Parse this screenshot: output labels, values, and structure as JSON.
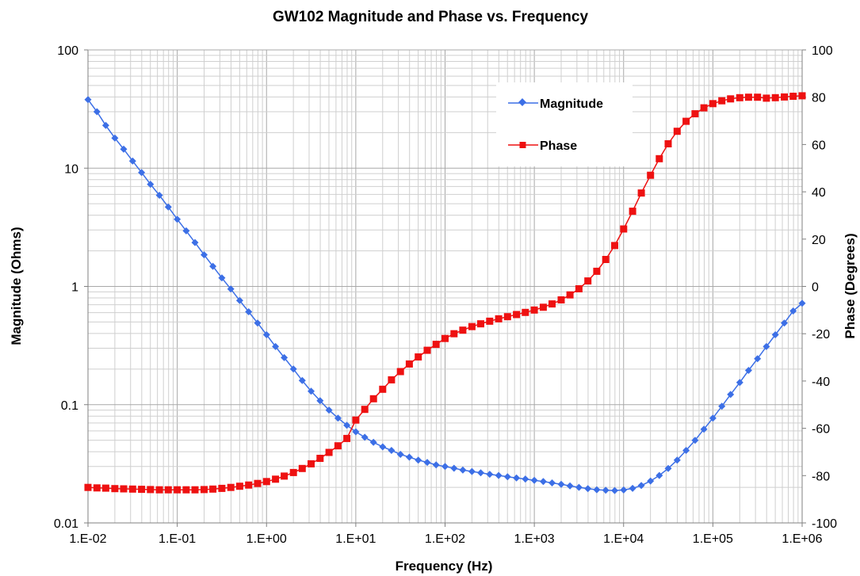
{
  "chart_data": {
    "type": "line",
    "title": "GW102 Magnitude and Phase vs. Frequency",
    "xlabel": "Frequency (Hz)",
    "ylabel_left": "Magnitude (Ohms)",
    "ylabel_right": "Phase (Degrees)",
    "x_scale": "log",
    "y_left_scale": "log",
    "y_right_scale": "linear",
    "xlim": [
      0.01,
      1000000
    ],
    "ylim_left": [
      0.01,
      100
    ],
    "ylim_right": [
      -100,
      100
    ],
    "x_tick_labels": [
      "1.E-02",
      "1.E-01",
      "1.E+00",
      "1.E+01",
      "1.E+02",
      "1.E+03",
      "1.E+04",
      "1.E+05",
      "1.E+06"
    ],
    "y_left_tick_labels": [
      "0.01",
      "0.1",
      "1",
      "10",
      "100"
    ],
    "y_right_tick_labels": [
      "-100",
      "-80",
      "-60",
      "-40",
      "-20",
      "0",
      "20",
      "40",
      "60",
      "80",
      "100"
    ],
    "grid": true,
    "legend_position": "top-right",
    "series": [
      {
        "name": "Magnitude",
        "axis": "left",
        "color": "#3c6fe6",
        "marker": "diamond",
        "points": [
          [
            0.01,
            38.0
          ],
          [
            0.0126,
            30.0
          ],
          [
            0.0158,
            23.0
          ],
          [
            0.02,
            18.0
          ],
          [
            0.0251,
            14.5
          ],
          [
            0.0316,
            11.5
          ],
          [
            0.0398,
            9.2
          ],
          [
            0.0501,
            7.3
          ],
          [
            0.0631,
            5.9
          ],
          [
            0.0794,
            4.7
          ],
          [
            0.1,
            3.7
          ],
          [
            0.126,
            2.95
          ],
          [
            0.158,
            2.35
          ],
          [
            0.2,
            1.85
          ],
          [
            0.251,
            1.48
          ],
          [
            0.316,
            1.18
          ],
          [
            0.398,
            0.95
          ],
          [
            0.501,
            0.76
          ],
          [
            0.631,
            0.61
          ],
          [
            0.794,
            0.49
          ],
          [
            1,
            0.39
          ],
          [
            1.26,
            0.31
          ],
          [
            1.58,
            0.25
          ],
          [
            2,
            0.2
          ],
          [
            2.51,
            0.16
          ],
          [
            3.16,
            0.13
          ],
          [
            3.98,
            0.108
          ],
          [
            5.01,
            0.09
          ],
          [
            6.31,
            0.077
          ],
          [
            7.94,
            0.067
          ],
          [
            10,
            0.059
          ],
          [
            12.6,
            0.053
          ],
          [
            15.8,
            0.048
          ],
          [
            20,
            0.044
          ],
          [
            25.1,
            0.041
          ],
          [
            31.6,
            0.038
          ],
          [
            39.8,
            0.036
          ],
          [
            50.1,
            0.034
          ],
          [
            63.1,
            0.0325
          ],
          [
            79.4,
            0.031
          ],
          [
            100,
            0.03
          ],
          [
            126,
            0.029
          ],
          [
            158,
            0.028
          ],
          [
            200,
            0.0272
          ],
          [
            251,
            0.0265
          ],
          [
            316,
            0.0258
          ],
          [
            398,
            0.0252
          ],
          [
            501,
            0.0246
          ],
          [
            631,
            0.024
          ],
          [
            794,
            0.0235
          ],
          [
            1000,
            0.0229
          ],
          [
            1260,
            0.0224
          ],
          [
            1580,
            0.0218
          ],
          [
            2000,
            0.0212
          ],
          [
            2510,
            0.0206
          ],
          [
            3160,
            0.02
          ],
          [
            3980,
            0.0195
          ],
          [
            5010,
            0.0191
          ],
          [
            6310,
            0.0189
          ],
          [
            7940,
            0.0188
          ],
          [
            10000,
            0.019
          ],
          [
            12600,
            0.0196
          ],
          [
            15800,
            0.0207
          ],
          [
            20000,
            0.0226
          ],
          [
            25100,
            0.0252
          ],
          [
            31600,
            0.0289
          ],
          [
            39800,
            0.034
          ],
          [
            50100,
            0.041
          ],
          [
            63100,
            0.05
          ],
          [
            79400,
            0.062
          ],
          [
            100000,
            0.077
          ],
          [
            126000,
            0.097
          ],
          [
            158000,
            0.122
          ],
          [
            200000,
            0.154
          ],
          [
            251000,
            0.195
          ],
          [
            316000,
            0.245
          ],
          [
            398000,
            0.31
          ],
          [
            501000,
            0.39
          ],
          [
            631000,
            0.49
          ],
          [
            794000,
            0.62
          ],
          [
            1000000,
            0.72
          ]
        ]
      },
      {
        "name": "Phase",
        "axis": "right",
        "color": "#ee1111",
        "marker": "square",
        "points": [
          [
            0.01,
            -85
          ],
          [
            0.0126,
            -85.2
          ],
          [
            0.0158,
            -85.3
          ],
          [
            0.02,
            -85.5
          ],
          [
            0.0251,
            -85.6
          ],
          [
            0.0316,
            -85.7
          ],
          [
            0.0398,
            -85.8
          ],
          [
            0.0501,
            -85.9
          ],
          [
            0.0631,
            -86
          ],
          [
            0.0794,
            -86
          ],
          [
            0.1,
            -86
          ],
          [
            0.126,
            -86
          ],
          [
            0.158,
            -86
          ],
          [
            0.2,
            -85.9
          ],
          [
            0.251,
            -85.7
          ],
          [
            0.316,
            -85.4
          ],
          [
            0.398,
            -85
          ],
          [
            0.501,
            -84.5
          ],
          [
            0.631,
            -84
          ],
          [
            0.794,
            -83.3
          ],
          [
            1,
            -82.5
          ],
          [
            1.26,
            -81.5
          ],
          [
            1.58,
            -80.2
          ],
          [
            2,
            -78.7
          ],
          [
            2.51,
            -77
          ],
          [
            3.16,
            -75
          ],
          [
            3.98,
            -72.7
          ],
          [
            5.01,
            -70.2
          ],
          [
            6.31,
            -67.4
          ],
          [
            7.94,
            -64.3
          ],
          [
            10,
            -56.5
          ],
          [
            12.6,
            -52
          ],
          [
            15.8,
            -47.5
          ],
          [
            20,
            -43.5
          ],
          [
            25.1,
            -39.5
          ],
          [
            31.6,
            -36
          ],
          [
            39.8,
            -32.8
          ],
          [
            50.1,
            -29.8
          ],
          [
            63.1,
            -27
          ],
          [
            79.4,
            -24.5
          ],
          [
            100,
            -22
          ],
          [
            126,
            -20
          ],
          [
            158,
            -18.5
          ],
          [
            200,
            -17
          ],
          [
            251,
            -15.8
          ],
          [
            316,
            -14.7
          ],
          [
            398,
            -13.7
          ],
          [
            501,
            -12.8
          ],
          [
            631,
            -11.9
          ],
          [
            794,
            -11
          ],
          [
            1000,
            -10
          ],
          [
            1260,
            -8.8
          ],
          [
            1580,
            -7.4
          ],
          [
            2000,
            -5.7
          ],
          [
            2510,
            -3.6
          ],
          [
            3160,
            -1
          ],
          [
            3980,
            2.3
          ],
          [
            5010,
            6.4
          ],
          [
            6310,
            11.4
          ],
          [
            7940,
            17.3
          ],
          [
            10000,
            24.3
          ],
          [
            12600,
            31.8
          ],
          [
            15800,
            39.5
          ],
          [
            20000,
            47
          ],
          [
            25100,
            54
          ],
          [
            31600,
            60.3
          ],
          [
            39800,
            65.6
          ],
          [
            50100,
            69.8
          ],
          [
            63100,
            73
          ],
          [
            79400,
            75.5
          ],
          [
            100000,
            77.3
          ],
          [
            126000,
            78.5
          ],
          [
            158000,
            79.3
          ],
          [
            200000,
            79.8
          ],
          [
            251000,
            80
          ],
          [
            316000,
            80
          ],
          [
            398000,
            79.6
          ],
          [
            501000,
            79.8
          ],
          [
            631000,
            80.1
          ],
          [
            794000,
            80.4
          ],
          [
            1000000,
            80.6
          ]
        ]
      }
    ]
  }
}
